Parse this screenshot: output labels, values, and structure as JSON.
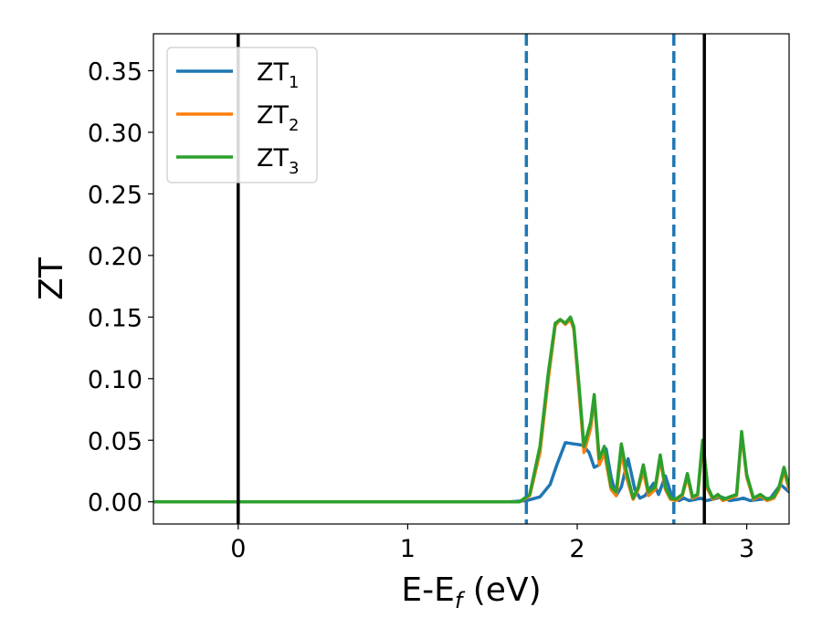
{
  "chart_data": {
    "type": "line",
    "xlabel": "E-E",
    "xlabel_sub": "f",
    "xlabel_unit": " (eV)",
    "ylabel": "ZT",
    "xlim": [
      -0.5,
      3.25
    ],
    "ylim": [
      -0.018,
      0.38
    ],
    "xticks": [
      0,
      1,
      2,
      3
    ],
    "xtick_labels": [
      "0",
      "1",
      "2",
      "3"
    ],
    "yticks": [
      0.0,
      0.05,
      0.1,
      0.15,
      0.2,
      0.25,
      0.3,
      0.35
    ],
    "ytick_labels": [
      "0.00",
      "0.05",
      "0.10",
      "0.15",
      "0.20",
      "0.25",
      "0.30",
      "0.35"
    ],
    "grid": false,
    "legend_position": "top-left",
    "vlines": [
      {
        "x": 0.0,
        "style": "solid",
        "color": "#000000"
      },
      {
        "x": 1.7,
        "style": "dashed",
        "color": "#1f77b4"
      },
      {
        "x": 2.57,
        "style": "dashed",
        "color": "#1f77b4"
      },
      {
        "x": 2.75,
        "style": "solid",
        "color": "#000000"
      }
    ],
    "series": [
      {
        "name": "ZT",
        "name_sub": "1",
        "color": "#1f77b4",
        "x": [
          -0.5,
          1.6,
          1.7,
          1.78,
          1.84,
          1.88,
          1.93,
          1.98,
          2.03,
          2.07,
          2.1,
          2.13,
          2.17,
          2.2,
          2.23,
          2.26,
          2.3,
          2.34,
          2.37,
          2.4,
          2.45,
          2.48,
          2.52,
          2.56,
          2.6,
          2.63,
          2.66,
          2.7,
          2.73,
          2.76,
          2.8,
          2.85,
          2.9,
          2.95,
          2.98,
          3.02,
          3.08,
          3.14,
          3.2,
          3.25
        ],
        "values": [
          0.0,
          0.0,
          0.001,
          0.004,
          0.014,
          0.03,
          0.048,
          0.047,
          0.046,
          0.04,
          0.028,
          0.03,
          0.043,
          0.02,
          0.005,
          0.012,
          0.035,
          0.01,
          0.003,
          0.005,
          0.015,
          0.006,
          0.021,
          0.004,
          0.001,
          0.003,
          0.001,
          0.002,
          0.003,
          0.001,
          0.002,
          0.004,
          0.001,
          0.002,
          0.003,
          0.001,
          0.002,
          0.003,
          0.014,
          0.008
        ]
      },
      {
        "name": "ZT",
        "name_sub": "2",
        "color": "#ff7f0e",
        "x": [
          -0.5,
          1.6,
          1.66,
          1.72,
          1.78,
          1.83,
          1.87,
          1.9,
          1.93,
          1.96,
          1.98,
          2.01,
          2.04,
          2.08,
          2.1,
          2.13,
          2.16,
          2.2,
          2.23,
          2.26,
          2.29,
          2.33,
          2.36,
          2.39,
          2.42,
          2.46,
          2.49,
          2.52,
          2.55,
          2.58,
          2.62,
          2.65,
          2.68,
          2.71,
          2.74,
          2.77,
          2.8,
          2.83,
          2.86,
          2.9,
          2.94,
          2.97,
          3.0,
          3.04,
          3.08,
          3.12,
          3.16,
          3.19,
          3.22,
          3.25
        ],
        "values": [
          0.0,
          0.0,
          0.0,
          0.005,
          0.04,
          0.1,
          0.143,
          0.148,
          0.144,
          0.148,
          0.14,
          0.09,
          0.04,
          0.06,
          0.085,
          0.03,
          0.04,
          0.01,
          0.005,
          0.04,
          0.02,
          0.002,
          0.01,
          0.025,
          0.005,
          0.01,
          0.035,
          0.01,
          0.002,
          0.001,
          0.005,
          0.02,
          0.003,
          0.005,
          0.045,
          0.01,
          0.002,
          0.005,
          0.001,
          0.003,
          0.005,
          0.055,
          0.02,
          0.002,
          0.005,
          0.001,
          0.003,
          0.01,
          0.025,
          0.01
        ]
      },
      {
        "name": "ZT",
        "name_sub": "3",
        "color": "#2ca02c",
        "x": [
          -0.5,
          1.6,
          1.66,
          1.72,
          1.78,
          1.83,
          1.87,
          1.9,
          1.93,
          1.96,
          1.98,
          2.01,
          2.04,
          2.08,
          2.1,
          2.13,
          2.16,
          2.2,
          2.23,
          2.26,
          2.29,
          2.33,
          2.36,
          2.39,
          2.42,
          2.46,
          2.49,
          2.52,
          2.55,
          2.58,
          2.62,
          2.65,
          2.68,
          2.71,
          2.74,
          2.77,
          2.8,
          2.83,
          2.86,
          2.9,
          2.94,
          2.97,
          3.0,
          3.04,
          3.08,
          3.12,
          3.16,
          3.19,
          3.22,
          3.25
        ],
        "values": [
          0.0,
          0.0,
          0.0,
          0.006,
          0.045,
          0.105,
          0.145,
          0.148,
          0.145,
          0.15,
          0.142,
          0.095,
          0.045,
          0.065,
          0.087,
          0.035,
          0.045,
          0.012,
          0.008,
          0.047,
          0.025,
          0.003,
          0.012,
          0.03,
          0.008,
          0.012,
          0.038,
          0.012,
          0.003,
          0.002,
          0.006,
          0.023,
          0.004,
          0.006,
          0.05,
          0.012,
          0.003,
          0.006,
          0.002,
          0.004,
          0.006,
          0.057,
          0.022,
          0.003,
          0.006,
          0.002,
          0.004,
          0.012,
          0.028,
          0.012
        ]
      }
    ]
  }
}
